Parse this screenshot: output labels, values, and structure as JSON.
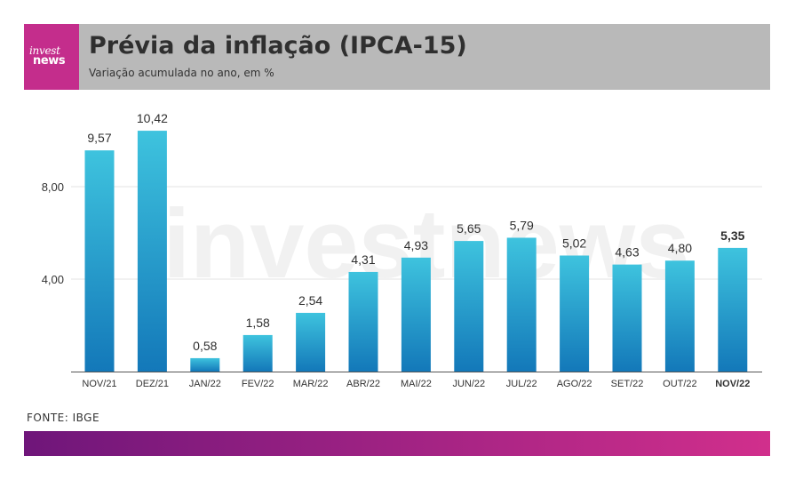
{
  "logo": {
    "line1": "invest",
    "line2": "news"
  },
  "header": {
    "title": "Prévia da inflação (IPCA-15)",
    "subtitle": "Variação acumulada no ano, em %"
  },
  "source": "FONTE: IBGE",
  "watermark": "investnews",
  "colors": {
    "bar_top": "#3ec3de",
    "bar_bottom": "#1378b9",
    "header_bg": "#b9b9b9",
    "brand": "#c42d8c"
  },
  "chart_data": {
    "type": "bar",
    "categories": [
      "NOV/21",
      "DEZ/21",
      "JAN/22",
      "FEV/22",
      "MAR/22",
      "ABR/22",
      "MAI/22",
      "JUN/22",
      "JUL/22",
      "AGO/22",
      "SET/22",
      "OUT/22",
      "NOV/22"
    ],
    "values": [
      9.57,
      10.42,
      0.58,
      1.58,
      2.54,
      4.31,
      4.93,
      5.65,
      5.79,
      5.02,
      4.63,
      4.8,
      5.35
    ],
    "value_labels": [
      "9,57",
      "10,42",
      "0,58",
      "1,58",
      "2,54",
      "4,31",
      "4,93",
      "5,65",
      "5,79",
      "5,02",
      "4,63",
      "4,80",
      "5,35"
    ],
    "highlight": "NOV/22",
    "yticks": [
      4,
      8
    ],
    "ytick_labels": [
      "4,00",
      "8,00"
    ],
    "ylim": [
      0,
      11
    ],
    "grid": true,
    "legend": "none"
  }
}
